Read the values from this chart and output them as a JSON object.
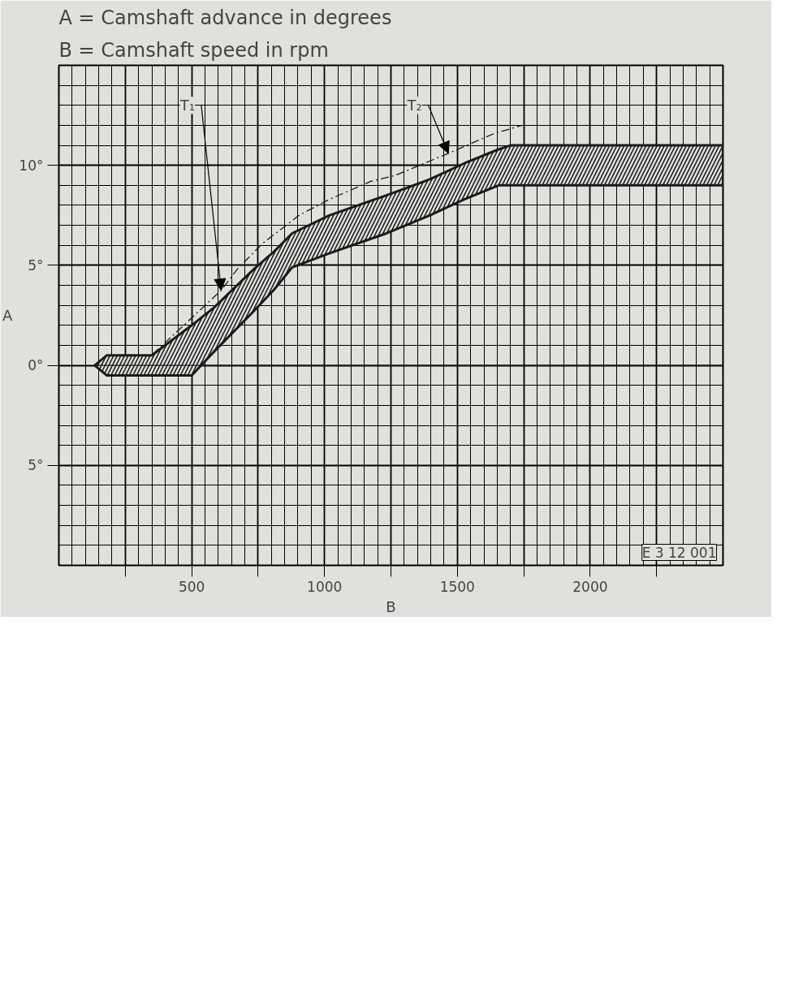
{
  "chart_data": {
    "type": "line",
    "title": "A = Camshaft advance in degrees",
    "subtitle": "B = Camshaft speed in rpm",
    "xlabel": "B",
    "ylabel": "A",
    "x": [
      135,
      180,
      350,
      500,
      585,
      733,
      811,
      878,
      1018,
      1233,
      1396,
      1526,
      1655,
      1700,
      1829,
      2500
    ],
    "series": [
      {
        "color": "#1a1a1a",
        "values": [
          null,
          null,
          null,
          null,
          null,
          null,
          null,
          null,
          null,
          null,
          null,
          null,
          null,
          null,
          null,
          null
        ],
        "lower": [
          0,
          -0.5,
          -0.5,
          -0.5,
          0.7,
          2.7,
          3.8,
          4.9,
          5.6,
          6.6,
          7.5,
          8.3,
          9.0,
          9.0,
          9.0,
          9.0
        ],
        "upper": [
          0,
          0.5,
          0.5,
          2.0,
          2.9,
          4.8,
          5.7,
          6.6,
          7.5,
          8.5,
          9.3,
          10.1,
          10.8,
          11.0,
          11.0,
          11.0
        ]
      },
      {
        "type": "line",
        "color": "#1a1a1a",
        "line_style": "dashed",
        "x": [
          353,
          611,
          671,
          767,
          904,
          1018,
          1174,
          1267,
          1484,
          1640,
          1744
        ],
        "values": [
          0.55,
          3.75,
          4.8,
          6.1,
          7.5,
          8.3,
          9.2,
          9.5,
          10.7,
          11.6,
          12.0
        ]
      }
    ],
    "xlim": [
      0,
      2500
    ],
    "ylim": [
      -10,
      15
    ],
    "xticks": [
      {
        "value": 250,
        "label": null
      },
      500,
      {
        "value": 750,
        "label": null
      },
      1000,
      {
        "value": 1250,
        "label": null
      },
      1500,
      {
        "value": 1750,
        "label": null
      },
      2000,
      {
        "value": 2250,
        "label": null
      }
    ],
    "yticks": [
      {
        "value": -5,
        "label": "5°"
      },
      {
        "value": 0,
        "label": "0°"
      },
      {
        "value": 5,
        "label": "5°"
      },
      {
        "value": 10,
        "label": "10°"
      }
    ],
    "grid": true,
    "annotations": [
      {
        "text": "T₁",
        "x": 611,
        "y": 3.75
      },
      {
        "text": "T₂",
        "x": 1466,
        "y": 10.6
      },
      "E 3 12 001"
    ]
  }
}
